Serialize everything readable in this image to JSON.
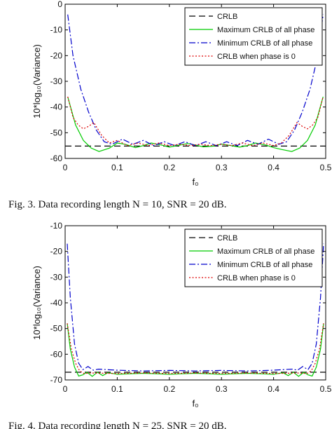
{
  "chart_data": [
    {
      "type": "line",
      "xlabel": "f₀",
      "ylabel": "10*log₁₀(Variance)",
      "xlim": [
        0,
        0.5
      ],
      "ylim": [
        -60,
        0
      ],
      "xticks": [
        "0",
        "0.1",
        "0.2",
        "0.3",
        "0.4",
        "0.5"
      ],
      "yticks": [
        "0",
        "-10",
        "-20",
        "-30",
        "-40",
        "-50",
        "-60"
      ],
      "legend_position": "top-right",
      "caption": "Fig. 3.    Data recording length N = 10, SNR = 20 dB.",
      "series": [
        {
          "name": "CRLB",
          "color": "#000000",
          "style": "dashed",
          "x": [
            0.0,
            0.5
          ],
          "y": [
            -55.2,
            -55.2
          ]
        },
        {
          "name": "Maximum CRLB of all phase",
          "color": "#00cc00",
          "style": "solid",
          "x": [
            0.005,
            0.02,
            0.035,
            0.05,
            0.065,
            0.085,
            0.1,
            0.115,
            0.135,
            0.15,
            0.165,
            0.185,
            0.2,
            0.215,
            0.235,
            0.25,
            0.265,
            0.285,
            0.3,
            0.315,
            0.335,
            0.35,
            0.365,
            0.385,
            0.4,
            0.415,
            0.435,
            0.45,
            0.465,
            0.48,
            0.495
          ],
          "y": [
            -36,
            -47,
            -53,
            -56,
            -57.3,
            -56,
            -54,
            -54.5,
            -55.8,
            -55,
            -54,
            -54.8,
            -55.6,
            -55,
            -54.2,
            -54.8,
            -55.5,
            -55.2,
            -54.4,
            -54.9,
            -55.6,
            -55,
            -54,
            -54.8,
            -55.8,
            -56.5,
            -57.3,
            -56,
            -53,
            -47,
            -36
          ]
        },
        {
          "name": "Minimum CRLB of all phase",
          "color": "#0000cc",
          "style": "dashdot",
          "x": [
            0.005,
            0.015,
            0.03,
            0.045,
            0.06,
            0.075,
            0.09,
            0.11,
            0.13,
            0.15,
            0.17,
            0.19,
            0.21,
            0.23,
            0.25,
            0.27,
            0.29,
            0.31,
            0.33,
            0.35,
            0.37,
            0.39,
            0.41,
            0.425,
            0.44,
            0.455,
            0.47,
            0.485,
            0.495
          ],
          "y": [
            -4,
            -20,
            -33,
            -42,
            -49,
            -53.5,
            -54.5,
            -52.5,
            -54.5,
            -53,
            -55,
            -53.5,
            -55,
            -53.5,
            -55,
            -53.5,
            -55,
            -53.5,
            -55,
            -53,
            -54.5,
            -52.5,
            -54.5,
            -53.5,
            -49,
            -42,
            -33,
            -20,
            -4
          ]
        },
        {
          "name": "CRLB when phase is 0",
          "color": "#dd0000",
          "style": "dotted",
          "x": [
            0.005,
            0.015,
            0.025,
            0.035,
            0.045,
            0.055,
            0.07,
            0.085,
            0.1,
            0.12,
            0.14,
            0.16,
            0.18,
            0.2,
            0.22,
            0.24,
            0.26,
            0.28,
            0.3,
            0.32,
            0.34,
            0.36,
            0.38,
            0.4,
            0.415,
            0.43,
            0.445,
            0.455,
            0.465,
            0.475,
            0.485,
            0.495
          ],
          "y": [
            -36,
            -44,
            -47,
            -48.5,
            -47.5,
            -46,
            -51,
            -54,
            -53,
            -55,
            -54,
            -55,
            -54,
            -55,
            -54.5,
            -55,
            -54.5,
            -55,
            -54.5,
            -55,
            -54,
            -55,
            -54,
            -55,
            -54,
            -51,
            -46,
            -47.5,
            -48.5,
            -47,
            -44,
            -36
          ]
        }
      ]
    },
    {
      "type": "line",
      "xlabel": "f₀",
      "ylabel": "10*log₁₀(Variance)",
      "xlim": [
        0,
        0.5
      ],
      "ylim": [
        -70,
        -10
      ],
      "xticks": [
        "0",
        "0.1",
        "0.2",
        "0.3",
        "0.4",
        "0.5"
      ],
      "yticks": [
        "-10",
        "-20",
        "-30",
        "-40",
        "-50",
        "-60",
        "-70"
      ],
      "legend_position": "top-right",
      "caption": "Fig. 4.    Data recording length N = 25, SNR = 20 dB.",
      "series": [
        {
          "name": "CRLB",
          "color": "#000000",
          "style": "dashed",
          "x": [
            0.0,
            0.5
          ],
          "y": [
            -67,
            -67
          ]
        },
        {
          "name": "Maximum CRLB of all phase",
          "color": "#00cc00",
          "style": "solid",
          "x": [
            0.004,
            0.01,
            0.018,
            0.026,
            0.034,
            0.042,
            0.052,
            0.062,
            0.072,
            0.082,
            0.1,
            0.15,
            0.2,
            0.25,
            0.3,
            0.35,
            0.4,
            0.418,
            0.428,
            0.438,
            0.448,
            0.458,
            0.466,
            0.474,
            0.482,
            0.49,
            0.496
          ],
          "y": [
            -48,
            -58,
            -65,
            -68.5,
            -68,
            -67,
            -68.6,
            -67,
            -68.3,
            -67.2,
            -67.8,
            -67.4,
            -67.8,
            -67.4,
            -67.8,
            -67.4,
            -67.8,
            -67.2,
            -68.3,
            -67,
            -68.6,
            -67,
            -68,
            -68.5,
            -65,
            -58,
            -48
          ]
        },
        {
          "name": "Minimum CRLB of all phase",
          "color": "#0000cc",
          "style": "dashdot",
          "x": [
            0.004,
            0.01,
            0.018,
            0.026,
            0.034,
            0.044,
            0.054,
            0.064,
            0.1,
            0.15,
            0.2,
            0.25,
            0.3,
            0.35,
            0.4,
            0.436,
            0.446,
            0.456,
            0.466,
            0.474,
            0.482,
            0.49,
            0.496
          ],
          "y": [
            -17,
            -38,
            -56,
            -63.5,
            -66,
            -64.8,
            -66.2,
            -65.8,
            -66.2,
            -66.5,
            -66.3,
            -66.5,
            -66.3,
            -66.5,
            -66.2,
            -65.8,
            -66.2,
            -64.8,
            -66,
            -63.5,
            -56,
            -38,
            -17
          ]
        },
        {
          "name": "CRLB when phase is 0",
          "color": "#dd0000",
          "style": "dotted",
          "x": [
            0.004,
            0.012,
            0.02,
            0.028,
            0.036,
            0.05,
            0.1,
            0.15,
            0.2,
            0.25,
            0.3,
            0.35,
            0.4,
            0.45,
            0.464,
            0.472,
            0.48,
            0.488,
            0.496
          ],
          "y": [
            -48,
            -58,
            -63.5,
            -66.5,
            -67.5,
            -67.3,
            -67.5,
            -67.3,
            -67.5,
            -67.3,
            -67.5,
            -67.3,
            -67.5,
            -67.3,
            -67.5,
            -66.5,
            -63.5,
            -58,
            -48
          ]
        }
      ]
    }
  ]
}
